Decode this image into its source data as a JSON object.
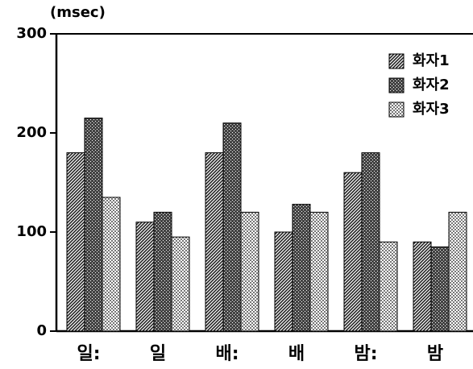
{
  "chart_data": {
    "type": "bar",
    "ylabel": "(msec)",
    "categories": [
      "일:",
      "일",
      "배:",
      "배",
      "밤:",
      "밤"
    ],
    "series": [
      {
        "name": "화자1",
        "color": "#222222",
        "values": [
          180,
          110,
          180,
          100,
          160,
          90
        ]
      },
      {
        "name": "화자2",
        "color": "#444444",
        "values": [
          215,
          120,
          210,
          128,
          180,
          85
        ]
      },
      {
        "name": "화자3",
        "color": "#777777",
        "values": [
          135,
          95,
          120,
          120,
          90,
          120
        ]
      }
    ],
    "ylim": [
      0,
      300
    ],
    "yticks": [
      0,
      100,
      200,
      300
    ],
    "legend": "upper right"
  }
}
